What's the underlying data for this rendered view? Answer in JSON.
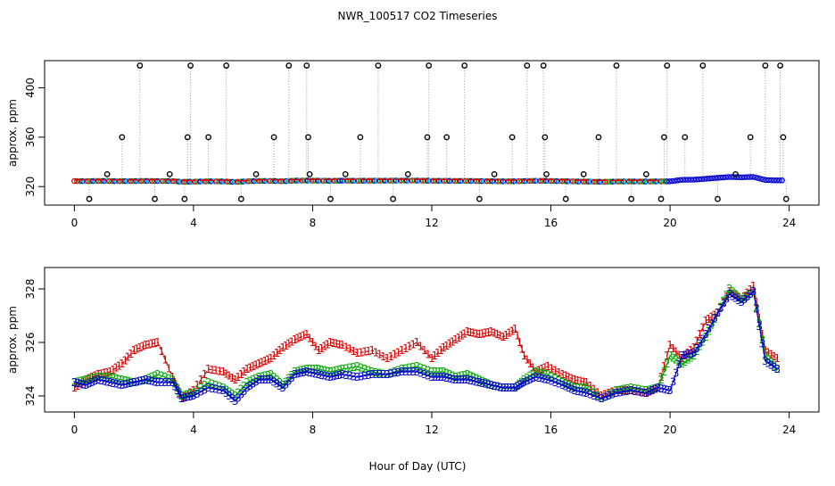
{
  "chart_data": {
    "title": "NWR_100517  CO2 Timeseries",
    "xlabel": "Hour of Day (UTC)",
    "panels": [
      {
        "type": "scatter",
        "ylabel": "approx. ppm",
        "xlim": [
          -1,
          25
        ],
        "ylim": [
          305,
          422
        ],
        "x_ticks": [
          0,
          4,
          8,
          12,
          16,
          20,
          24
        ],
        "y_ticks": [
          320,
          360,
          400
        ],
        "spike_levels": [
          310,
          330,
          360,
          418
        ],
        "spikes_x": [
          0.5,
          1.1,
          1.6,
          2.2,
          2.7,
          3.2,
          3.7,
          3.8,
          3.9,
          4.5,
          5.1,
          5.6,
          6.1,
          6.7,
          7.2,
          7.8,
          7.85,
          7.9,
          8.6,
          9.1,
          9.6,
          10.2,
          10.7,
          11.2,
          11.85,
          11.9,
          12.5,
          13.1,
          13.6,
          14.1,
          14.7,
          15.2,
          15.75,
          15.8,
          15.85,
          16.5,
          17.1,
          17.6,
          18.2,
          18.7,
          19.2,
          19.7,
          19.8,
          19.9,
          20.5,
          21.1,
          21.6,
          22.2,
          22.7,
          23.2,
          23.7,
          23.8,
          23.9
        ],
        "spikes_y": [
          310,
          330,
          360,
          418,
          310,
          330,
          310,
          360,
          418,
          360,
          418,
          310,
          330,
          360,
          418,
          418,
          360,
          330,
          310,
          330,
          360,
          418,
          310,
          330,
          360,
          418,
          360,
          418,
          310,
          330,
          360,
          418,
          418,
          360,
          330,
          310,
          330,
          360,
          418,
          310,
          330,
          310,
          360,
          418,
          360,
          418,
          310,
          330,
          360,
          418,
          418,
          360,
          310
        ]
      },
      {
        "type": "line",
        "ylabel": "approx. ppm",
        "xlim": [
          -1,
          25
        ],
        "ylim": [
          323.4,
          328.8
        ],
        "x_ticks": [
          0,
          4,
          8,
          12,
          16,
          20,
          24
        ],
        "y_ticks": [
          324,
          326,
          328
        ],
        "series": [
          {
            "name": "1",
            "color": "#dd0000",
            "x": [
              0.0,
              0.4,
              0.8,
              1.2,
              1.6,
              2.0,
              2.4,
              2.8,
              3.3,
              3.6,
              4.0,
              4.5,
              5.0,
              5.4,
              5.8,
              6.2,
              6.6,
              7.0,
              7.4,
              7.8,
              8.2,
              8.6,
              9.0,
              9.5,
              10.0,
              10.5,
              11.0,
              11.5,
              12.0,
              12.4,
              12.8,
              13.2,
              13.6,
              14.0,
              14.4,
              14.8,
              15.1,
              15.5,
              15.9,
              16.4,
              16.8,
              17.2,
              17.7,
              18.2,
              18.7,
              19.2,
              19.6,
              20.0,
              20.4,
              20.8,
              21.2,
              21.6,
              22.0,
              22.4,
              22.8,
              23.2,
              23.6
            ],
            "y": [
              324.3,
              324.6,
              324.8,
              324.9,
              325.2,
              325.7,
              325.9,
              326.0,
              324.7,
              323.9,
              324.2,
              325.0,
              324.9,
              324.6,
              325.0,
              325.2,
              325.4,
              325.8,
              326.1,
              326.3,
              325.7,
              326.0,
              325.9,
              325.6,
              325.7,
              325.4,
              325.7,
              326.0,
              325.4,
              325.8,
              326.1,
              326.4,
              326.3,
              326.4,
              326.2,
              326.5,
              325.5,
              324.9,
              325.1,
              324.8,
              324.6,
              324.5,
              324.0,
              324.2,
              324.2,
              324.1,
              324.3,
              325.9,
              325.4,
              325.8,
              326.8,
              327.1,
              327.9,
              327.6,
              328.1,
              325.7,
              325.4
            ]
          },
          {
            "name": "2",
            "color": "#00aa00",
            "x": [
              0.0,
              0.4,
              0.8,
              1.2,
              1.6,
              2.0,
              2.4,
              2.8,
              3.3,
              3.6,
              4.0,
              4.5,
              5.0,
              5.4,
              5.8,
              6.2,
              6.6,
              7.0,
              7.4,
              7.8,
              8.2,
              8.6,
              9.0,
              9.5,
              10.0,
              10.5,
              11.0,
              11.5,
              12.0,
              12.4,
              12.8,
              13.2,
              13.6,
              14.0,
              14.4,
              14.8,
              15.1,
              15.5,
              15.9,
              16.4,
              16.8,
              17.2,
              17.7,
              18.2,
              18.7,
              19.2,
              19.6,
              20.0,
              20.4,
              20.8,
              21.2,
              21.6,
              22.0,
              22.4,
              22.8,
              23.2,
              23.6
            ],
            "y": [
              324.5,
              324.6,
              324.7,
              324.7,
              324.6,
              324.5,
              324.6,
              324.8,
              324.6,
              324.0,
              324.1,
              324.5,
              324.3,
              324.0,
              324.5,
              324.7,
              324.8,
              324.4,
              324.9,
              325.0,
              325.0,
              324.9,
              325.0,
              325.1,
              324.9,
              324.8,
              325.0,
              325.1,
              324.9,
              324.9,
              324.7,
              324.8,
              324.6,
              324.4,
              324.3,
              324.3,
              324.6,
              324.9,
              324.8,
              324.5,
              324.3,
              324.3,
              323.9,
              324.2,
              324.3,
              324.2,
              324.3,
              325.5,
              325.2,
              325.5,
              326.2,
              327.1,
              328.0,
              327.6,
              327.9,
              325.5,
              325.0
            ]
          },
          {
            "name": "3",
            "color": "#0000cc",
            "x": [
              0.0,
              0.4,
              0.8,
              1.2,
              1.6,
              2.0,
              2.4,
              2.8,
              3.3,
              3.6,
              4.0,
              4.5,
              5.0,
              5.4,
              5.8,
              6.2,
              6.6,
              7.0,
              7.4,
              7.8,
              8.2,
              8.6,
              9.0,
              9.5,
              10.0,
              10.5,
              11.0,
              11.5,
              12.0,
              12.4,
              12.8,
              13.2,
              13.6,
              14.0,
              14.4,
              14.8,
              15.1,
              15.5,
              15.9,
              16.4,
              16.8,
              17.2,
              17.7,
              18.2,
              18.7,
              19.2,
              19.6,
              20.0,
              20.4,
              20.8,
              21.2,
              21.6,
              22.0,
              22.4,
              22.8,
              23.2,
              23.6
            ],
            "y": [
              324.5,
              324.4,
              324.6,
              324.5,
              324.4,
              324.5,
              324.6,
              324.5,
              324.5,
              323.9,
              324.0,
              324.3,
              324.2,
              323.8,
              324.3,
              324.6,
              324.6,
              324.3,
              324.8,
              324.9,
              324.8,
              324.7,
              324.8,
              324.7,
              324.8,
              324.8,
              324.9,
              324.9,
              324.7,
              324.7,
              324.6,
              324.6,
              324.5,
              324.4,
              324.3,
              324.3,
              324.5,
              324.7,
              324.6,
              324.4,
              324.2,
              324.1,
              323.9,
              324.1,
              324.2,
              324.1,
              324.3,
              324.2,
              325.5,
              325.6,
              326.3,
              327.1,
              327.8,
              327.5,
              327.9,
              325.3,
              325.0
            ]
          }
        ]
      }
    ]
  },
  "colors": {
    "series1": "#dd0000",
    "series2": "#00aa00",
    "series3": "#0000cc",
    "mixed_points": "#00c8d8",
    "spike": "#000000"
  }
}
